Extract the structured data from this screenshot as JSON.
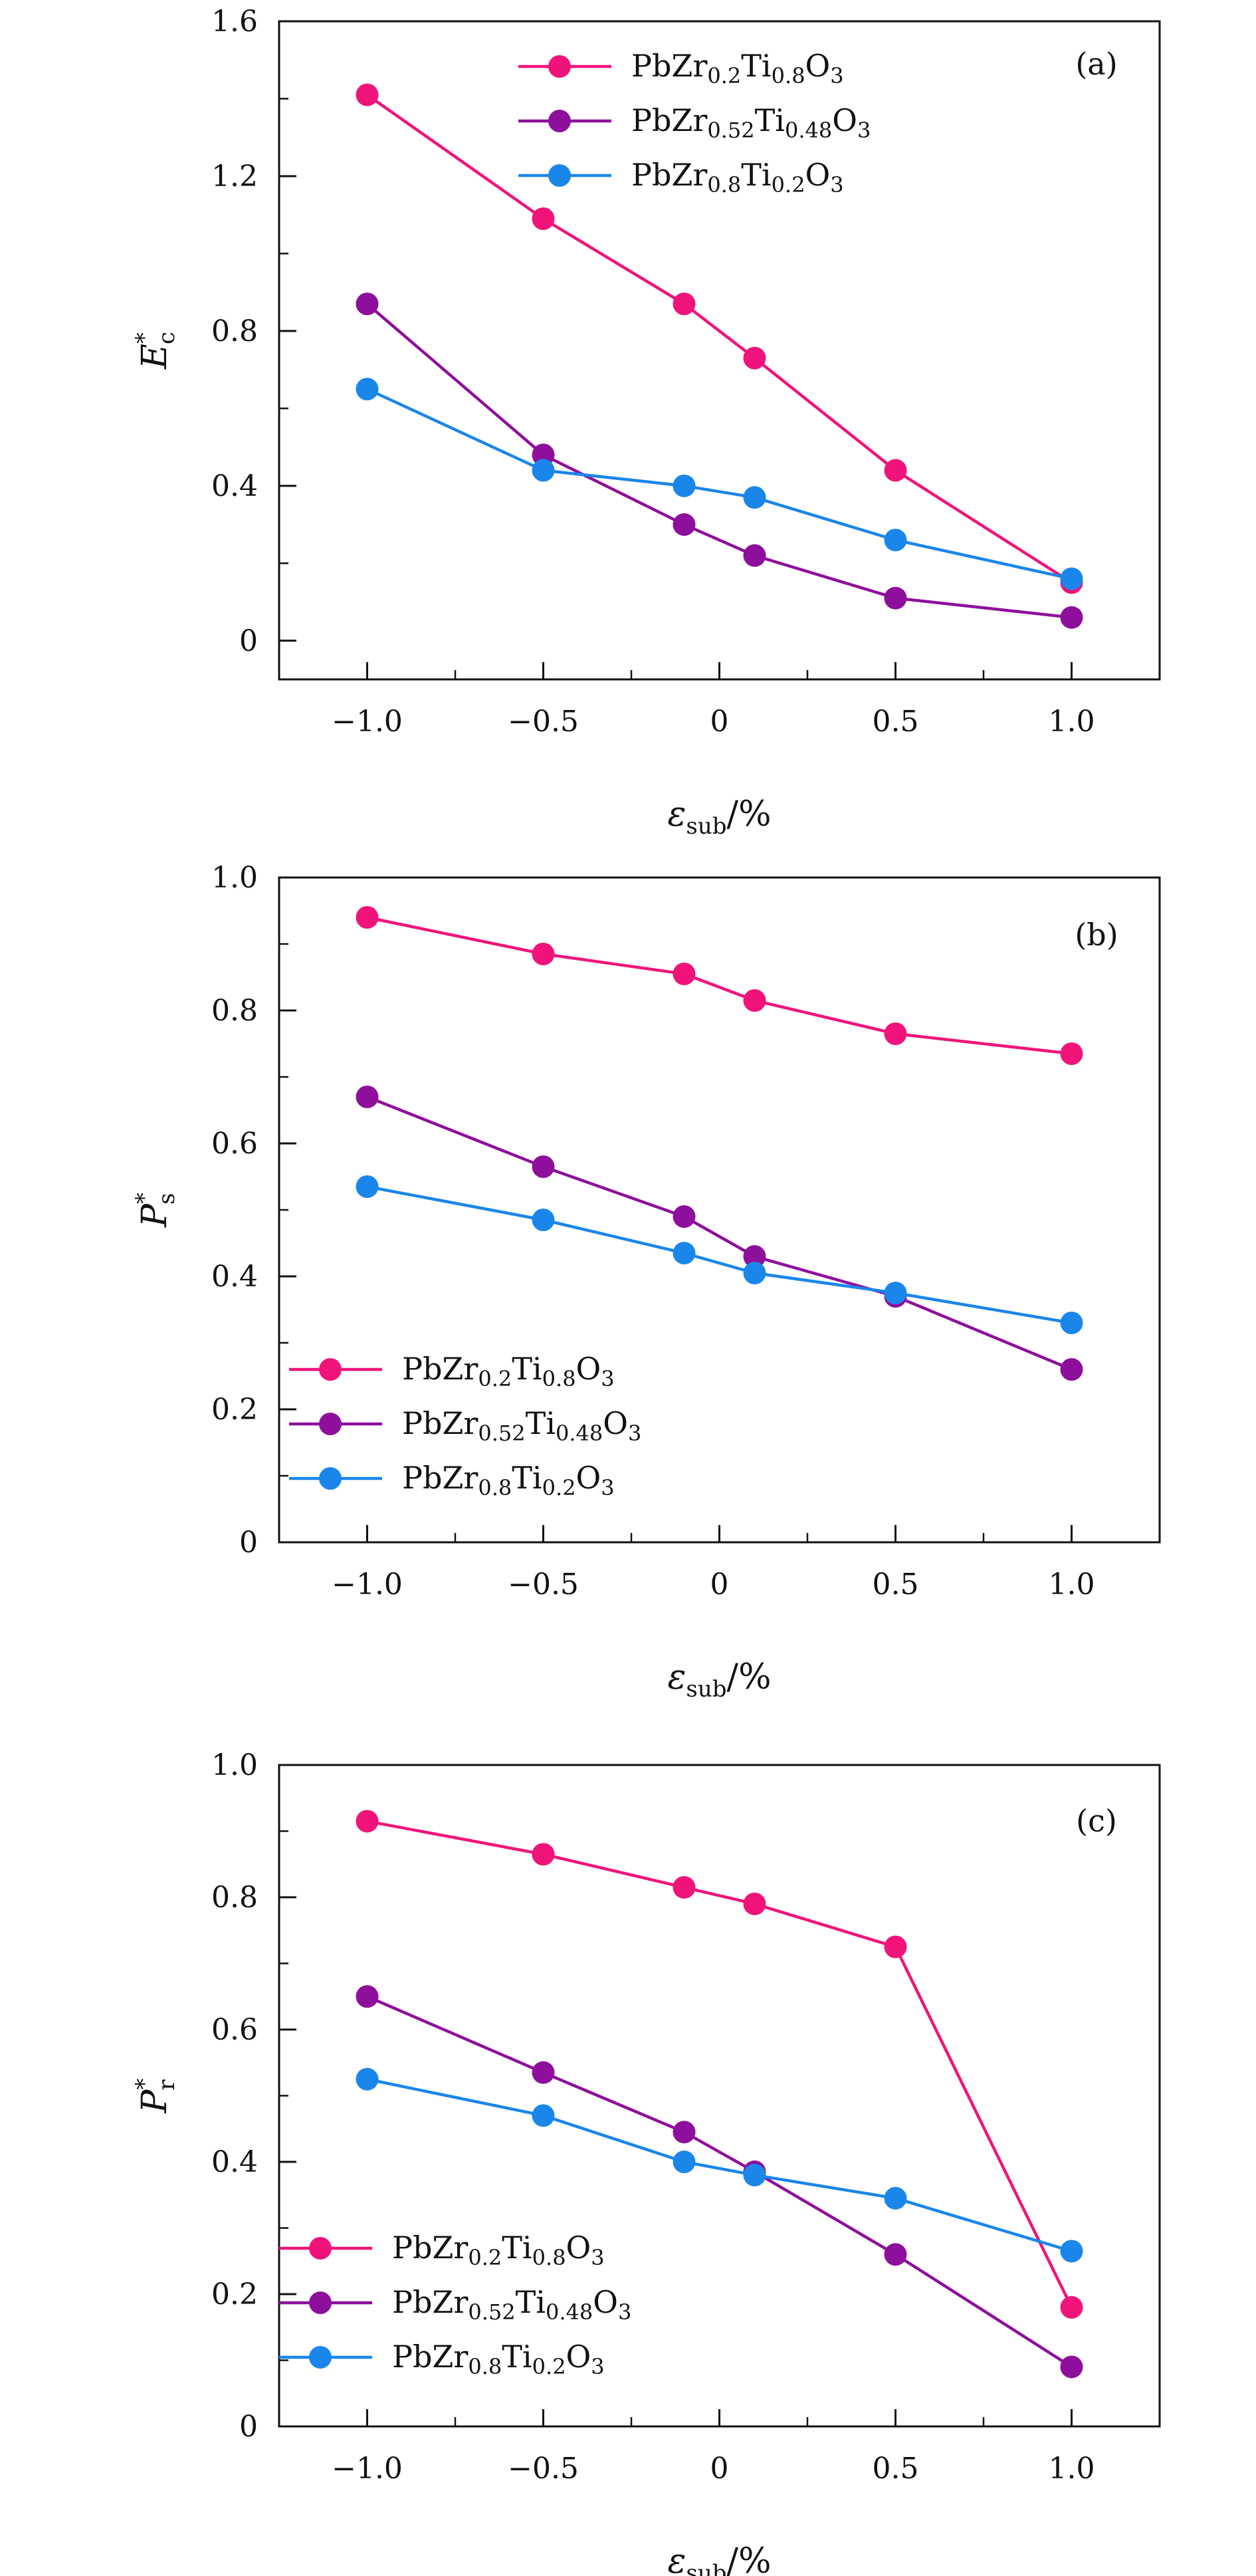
{
  "chart_data": [
    {
      "type": "line",
      "panel_label": "(a)",
      "x": [
        -1.0,
        -0.5,
        -0.1,
        0.1,
        0.5,
        1.0
      ],
      "xlim": [
        -1.25,
        1.25
      ],
      "ylim": [
        -0.1,
        1.6
      ],
      "xticks": [
        -1.0,
        -0.5,
        0,
        0.5,
        1.0
      ],
      "xtick_labels": [
        "−1.0",
        "−0.5",
        "0",
        "0.5",
        "1.0"
      ],
      "yticks": [
        0,
        0.4,
        0.8,
        1.2,
        1.6
      ],
      "ytick_labels": [
        "0",
        "0.4",
        "0.8",
        "1.2",
        "1.6"
      ],
      "xlabel": {
        "main": "ε",
        "sub": "sub",
        "suffix": "/%"
      },
      "ylabel": {
        "main": "E",
        "sup": "*",
        "sub": "c"
      },
      "legend": "top-right",
      "series": [
        {
          "name": "PbZr0.2Ti0.8O3",
          "name_parts": [
            "PbZr",
            "0.2",
            "Ti",
            "0.8",
            "O",
            "3"
          ],
          "color": "#f0147a",
          "values": [
            1.41,
            1.09,
            0.87,
            0.73,
            0.44,
            0.15
          ]
        },
        {
          "name": "PbZr0.52Ti0.48O3",
          "name_parts": [
            "PbZr",
            "0.52",
            "Ti",
            "0.48",
            "O",
            "3"
          ],
          "color": "#8e0f9c",
          "values": [
            0.87,
            0.48,
            0.3,
            0.22,
            0.11,
            0.06
          ]
        },
        {
          "name": "PbZr0.8Ti0.2O3",
          "name_parts": [
            "PbZr",
            "0.8",
            "Ti",
            "0.2",
            "O",
            "3"
          ],
          "color": "#1a86ea",
          "values": [
            0.65,
            0.44,
            0.4,
            0.37,
            0.26,
            0.16
          ]
        }
      ]
    },
    {
      "type": "line",
      "panel_label": "(b)",
      "x": [
        -1.0,
        -0.5,
        -0.1,
        0.1,
        0.5,
        1.0
      ],
      "xlim": [
        -1.25,
        1.25
      ],
      "ylim": [
        0,
        1.0
      ],
      "xticks": [
        -1.0,
        -0.5,
        0,
        0.5,
        1.0
      ],
      "xtick_labels": [
        "−1.0",
        "−0.5",
        "0",
        "0.5",
        "1.0"
      ],
      "yticks": [
        0,
        0.2,
        0.4,
        0.6,
        0.8,
        1.0
      ],
      "ytick_labels": [
        "0",
        "0.2",
        "0.4",
        "0.6",
        "0.8",
        "1.0"
      ],
      "xlabel": {
        "main": "ε",
        "sub": "sub",
        "suffix": "/%"
      },
      "ylabel": {
        "main": "P",
        "sup": "*",
        "sub": "s"
      },
      "legend": "bottom-left",
      "series": [
        {
          "name": "PbZr0.2Ti0.8O3",
          "name_parts": [
            "PbZr",
            "0.2",
            "Ti",
            "0.8",
            "O",
            "3"
          ],
          "color": "#f0147a",
          "values": [
            0.94,
            0.885,
            0.855,
            0.815,
            0.765,
            0.735
          ]
        },
        {
          "name": "PbZr0.52Ti0.48O3",
          "name_parts": [
            "PbZr",
            "0.52",
            "Ti",
            "0.48",
            "O",
            "3"
          ],
          "color": "#8e0f9c",
          "values": [
            0.67,
            0.565,
            0.49,
            0.43,
            0.37,
            0.26
          ]
        },
        {
          "name": "PbZr0.8Ti0.2O3",
          "name_parts": [
            "PbZr",
            "0.8",
            "Ti",
            "0.2",
            "O",
            "3"
          ],
          "color": "#1a86ea",
          "values": [
            0.535,
            0.485,
            0.435,
            0.405,
            0.375,
            0.33
          ]
        }
      ]
    },
    {
      "type": "line",
      "panel_label": "(c)",
      "x": [
        -1.0,
        -0.5,
        -0.1,
        0.1,
        0.5,
        1.0
      ],
      "xlim": [
        -1.25,
        1.25
      ],
      "ylim": [
        0,
        1.0
      ],
      "xticks": [
        -1.0,
        -0.5,
        0,
        0.5,
        1.0
      ],
      "xtick_labels": [
        "−1.0",
        "−0.5",
        "0",
        "0.5",
        "1.0"
      ],
      "yticks": [
        0,
        0.2,
        0.4,
        0.6,
        0.8,
        1.0
      ],
      "ytick_labels": [
        "0",
        "0.2",
        "0.4",
        "0.6",
        "0.8",
        "1.0"
      ],
      "xlabel": {
        "main": "ε",
        "sub": "sub",
        "suffix": "/%"
      },
      "ylabel": {
        "main": "P",
        "sup": "*",
        "sub": "r"
      },
      "legend": "bottom-left",
      "series": [
        {
          "name": "PbZr0.2Ti0.8O3",
          "name_parts": [
            "PbZr",
            "0.2",
            "Ti",
            "0.8",
            "O",
            "3"
          ],
          "color": "#f0147a",
          "values": [
            0.915,
            0.865,
            0.815,
            0.79,
            0.725,
            0.18
          ]
        },
        {
          "name": "PbZr0.52Ti0.48O3",
          "name_parts": [
            "PbZr",
            "0.52",
            "Ti",
            "0.48",
            "O",
            "3"
          ],
          "color": "#8e0f9c",
          "values": [
            0.65,
            0.535,
            0.445,
            0.385,
            0.26,
            0.09
          ]
        },
        {
          "name": "PbZr0.8Ti0.2O3",
          "name_parts": [
            "PbZr",
            "0.8",
            "Ti",
            "0.2",
            "O",
            "3"
          ],
          "color": "#1a86ea",
          "values": [
            0.525,
            0.47,
            0.4,
            0.38,
            0.345,
            0.265
          ]
        }
      ]
    }
  ]
}
